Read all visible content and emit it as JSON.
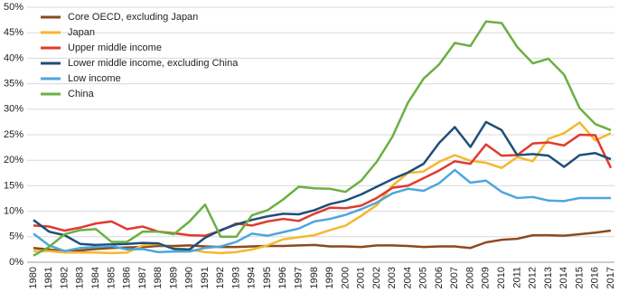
{
  "chart_data": {
    "type": "line",
    "x": [
      1980,
      1981,
      1982,
      1983,
      1984,
      1985,
      1986,
      1987,
      1988,
      1989,
      1990,
      1991,
      1992,
      1993,
      1994,
      1995,
      1996,
      1997,
      1998,
      1999,
      2000,
      2001,
      2002,
      2003,
      2004,
      2005,
      2006,
      2007,
      2008,
      2009,
      2010,
      2011,
      2012,
      2013,
      2014,
      2015,
      2016,
      2017
    ],
    "xlim": [
      1980,
      2017
    ],
    "ylim": [
      0,
      50
    ],
    "yticks": [
      {
        "value": 0,
        "label": "0%"
      },
      {
        "value": 5,
        "label": "5%"
      },
      {
        "value": 10,
        "label": "10%"
      },
      {
        "value": 15,
        "label": "15%"
      },
      {
        "value": 20,
        "label": "20%"
      },
      {
        "value": 25,
        "label": "25%"
      },
      {
        "value": 30,
        "label": "30%"
      },
      {
        "value": 35,
        "label": "35%"
      },
      {
        "value": 40,
        "label": "40%"
      },
      {
        "value": 45,
        "label": "45%"
      },
      {
        "value": 50,
        "label": "50%"
      }
    ],
    "grid": true,
    "legend": "top-left",
    "series": [
      {
        "name": "Core OECD, excluding Japan",
        "color": "#8c4a1c",
        "values": [
          2.8,
          2.5,
          2.1,
          2.3,
          2.6,
          2.8,
          2.9,
          3,
          3.2,
          3.2,
          3.3,
          3.1,
          3,
          3,
          3.1,
          3.2,
          3.2,
          3.3,
          3.4,
          3.1,
          3.1,
          3,
          3.3,
          3.3,
          3.2,
          3,
          3.1,
          3.1,
          2.8,
          3.9,
          4.4,
          4.6,
          5.3,
          5.3,
          5.2,
          5.5,
          5.8,
          6.2
        ]
      },
      {
        "name": "Japan",
        "color": "#f5b731",
        "values": [
          2.2,
          2.2,
          1.9,
          1.9,
          1.9,
          1.8,
          1.9,
          3.3,
          3.6,
          2.7,
          2.5,
          2,
          1.8,
          2,
          2.5,
          3.3,
          4.5,
          4.9,
          5.3,
          6.3,
          7.2,
          9.1,
          11.2,
          15,
          17.5,
          17.8,
          19.7,
          21,
          19.9,
          19.5,
          18.5,
          20.6,
          19.8,
          24.2,
          25.3,
          27.4,
          23.9,
          25.3
        ]
      },
      {
        "name": "Upper middle income",
        "color": "#e03a2f",
        "values": [
          7.2,
          7,
          6.2,
          6.8,
          7.6,
          8,
          6.5,
          7,
          6,
          5.7,
          5.3,
          5.2,
          6.2,
          7.6,
          7.2,
          8,
          8.5,
          8.1,
          9.5,
          10.7,
          10.6,
          11.1,
          12.6,
          14.6,
          15,
          16.5,
          18,
          19.8,
          19.3,
          23.1,
          20.9,
          21,
          23.3,
          23.5,
          22.9,
          25,
          24.9,
          18.5
        ]
      },
      {
        "name": "Lower middle income, excluding China",
        "color": "#1f4e79",
        "values": [
          8.3,
          6,
          5.3,
          3.6,
          3.4,
          3.5,
          3.6,
          3.8,
          3.7,
          2.6,
          2.5,
          4.8,
          6.3,
          7.4,
          8.3,
          9,
          9.5,
          9.4,
          10.2,
          11.4,
          12.1,
          13.3,
          14.8,
          16.3,
          17.6,
          19.3,
          23.4,
          26.5,
          22.6,
          27.5,
          25.9,
          21,
          21.2,
          20.9,
          18.7,
          21,
          21.4,
          20.2
        ]
      },
      {
        "name": "Low income",
        "color": "#4ea6dc",
        "values": [
          5.6,
          3.3,
          2.2,
          2.8,
          3,
          3.2,
          2.5,
          2.6,
          2,
          2.1,
          2.1,
          2.8,
          3.1,
          4,
          5.6,
          5.2,
          5.9,
          6.6,
          8,
          8.5,
          9.3,
          10.4,
          11.7,
          13.5,
          14.4,
          14,
          15.5,
          18.1,
          15.6,
          16,
          13.8,
          12.6,
          12.8,
          12.1,
          12,
          12.6,
          12.6,
          12.6
        ]
      },
      {
        "name": "China",
        "color": "#6ab043",
        "values": [
          1.3,
          3,
          5.5,
          6.3,
          6.5,
          4,
          4,
          6,
          6,
          5.5,
          8,
          11.3,
          5,
          5,
          9.2,
          10.2,
          12.3,
          14.8,
          14.5,
          14.4,
          13.8,
          16,
          19.7,
          24.6,
          31.3,
          36,
          38.8,
          43,
          42.4,
          47.2,
          46.9,
          42.2,
          39,
          39.9,
          36.8,
          30.2,
          27.1,
          25.9
        ]
      }
    ]
  }
}
